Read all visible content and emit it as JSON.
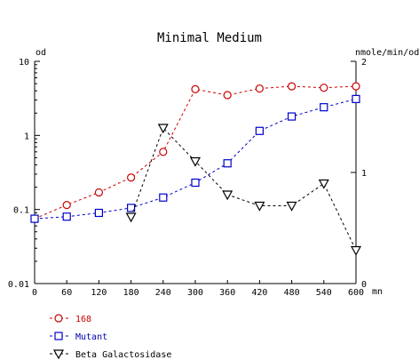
{
  "chart_data": {
    "type": "line",
    "title": "Minimal Medium",
    "y_left_label": "od",
    "y_right_label": "nmole/min/od",
    "x_unit": "mn",
    "x_ticks": [
      "0",
      "60",
      "120",
      "180",
      "240",
      "300",
      "360",
      "420",
      "480",
      "540",
      "600"
    ],
    "x_range": [
      0,
      600
    ],
    "y_left_scale": "log",
    "y_left_range": [
      0.01,
      10
    ],
    "y_left_ticks": [
      "10",
      "1",
      "0.1",
      "0.01"
    ],
    "y_right_scale": "linear",
    "y_right_range": [
      0,
      2
    ],
    "y_right_ticks": [
      "2",
      "1",
      "0"
    ],
    "grid": false,
    "legend_position": "bottom-left",
    "series": [
      {
        "name": "168",
        "axis": "left",
        "marker": "circle",
        "color": "#cc0000",
        "x": [
          0,
          60,
          120,
          180,
          240,
          300,
          360,
          420,
          480,
          540,
          600
        ],
        "y": [
          0.075,
          0.115,
          0.17,
          0.27,
          0.6,
          4.2,
          3.5,
          4.3,
          4.6,
          4.4,
          4.6
        ]
      },
      {
        "name": "Mutant",
        "axis": "left",
        "marker": "square",
        "color": "#0000cc",
        "x": [
          0,
          60,
          120,
          180,
          240,
          300,
          360,
          420,
          480,
          540,
          600
        ],
        "y": [
          0.075,
          0.08,
          0.09,
          0.105,
          0.145,
          0.23,
          0.42,
          1.15,
          1.8,
          2.4,
          3.1
        ]
      },
      {
        "name": "Beta Galactosidase",
        "axis": "right",
        "marker": "triangle-down",
        "color": "#000000",
        "x": [
          180,
          240,
          300,
          360,
          420,
          480,
          540,
          600
        ],
        "y": [
          0.6,
          1.4,
          1.1,
          0.8,
          0.7,
          0.7,
          0.9,
          0.3
        ]
      }
    ]
  }
}
